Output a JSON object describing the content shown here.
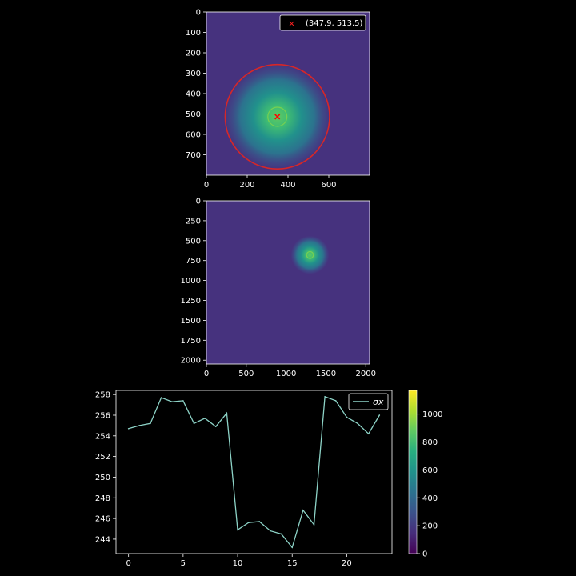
{
  "chart_data": [
    {
      "type": "heatmap",
      "panel": "top-image",
      "colormap": "viridis",
      "xlim": [
        0,
        800
      ],
      "ylim": [
        800,
        0
      ],
      "xticks": [
        0,
        200,
        400,
        600
      ],
      "yticks": [
        0,
        100,
        200,
        300,
        400,
        500,
        600,
        700
      ],
      "blob": {
        "center": [
          347.9,
          513.5
        ],
        "sigma": 130,
        "peak_fraction": 0.62
      },
      "circle": {
        "center": [
          347.9,
          513.5
        ],
        "radius": 256,
        "color": "#d62728"
      },
      "marker": {
        "x": 347.9,
        "y": 513.5,
        "symbol": "x",
        "color": "#ff0000"
      },
      "legend": {
        "label": "(347.9, 513.5)",
        "placement": "top-right"
      },
      "background_fraction": 0.18
    },
    {
      "type": "heatmap",
      "panel": "middle-image",
      "colormap": "viridis",
      "xlim": [
        0,
        2048
      ],
      "ylim": [
        2048,
        0
      ],
      "xticks": [
        0,
        500,
        1000,
        1500,
        2000
      ],
      "yticks": [
        0,
        250,
        500,
        750,
        1000,
        1250,
        1500,
        1750,
        2000
      ],
      "blob": {
        "center": [
          1300,
          680
        ],
        "sigma": 120,
        "peak_fraction": 0.62
      },
      "background_fraction": 0.18
    },
    {
      "type": "line",
      "panel": "bottom-line",
      "x": [
        0,
        1,
        2,
        3,
        4,
        5,
        6,
        7,
        8,
        9,
        10,
        11,
        12,
        13,
        14,
        15,
        16,
        17,
        18,
        19,
        20,
        21,
        22,
        23
      ],
      "series": [
        {
          "name": "σx",
          "color": "#8dd3c7",
          "values": [
            254.7,
            255.0,
            255.2,
            257.7,
            257.3,
            257.4,
            255.2,
            255.7,
            254.9,
            256.2,
            244.9,
            245.6,
            245.7,
            244.8,
            244.5,
            243.2,
            246.8,
            245.4,
            257.8,
            257.4,
            255.8,
            255.2,
            254.2,
            256.0
          ]
        }
      ],
      "xlim": [
        -1.15,
        24.15
      ],
      "ylim": [
        242.6,
        258.4
      ],
      "xticks": [
        0,
        5,
        10,
        15,
        20
      ],
      "yticks": [
        244,
        246,
        248,
        250,
        252,
        254,
        256,
        258
      ],
      "legend": {
        "label": "σx",
        "placement": "top-right"
      }
    },
    {
      "type": "colorbar",
      "panel": "colorbar",
      "colormap": "viridis",
      "range": [
        0,
        1170
      ],
      "ticks": [
        0,
        200,
        400,
        600,
        800,
        1000
      ]
    }
  ]
}
